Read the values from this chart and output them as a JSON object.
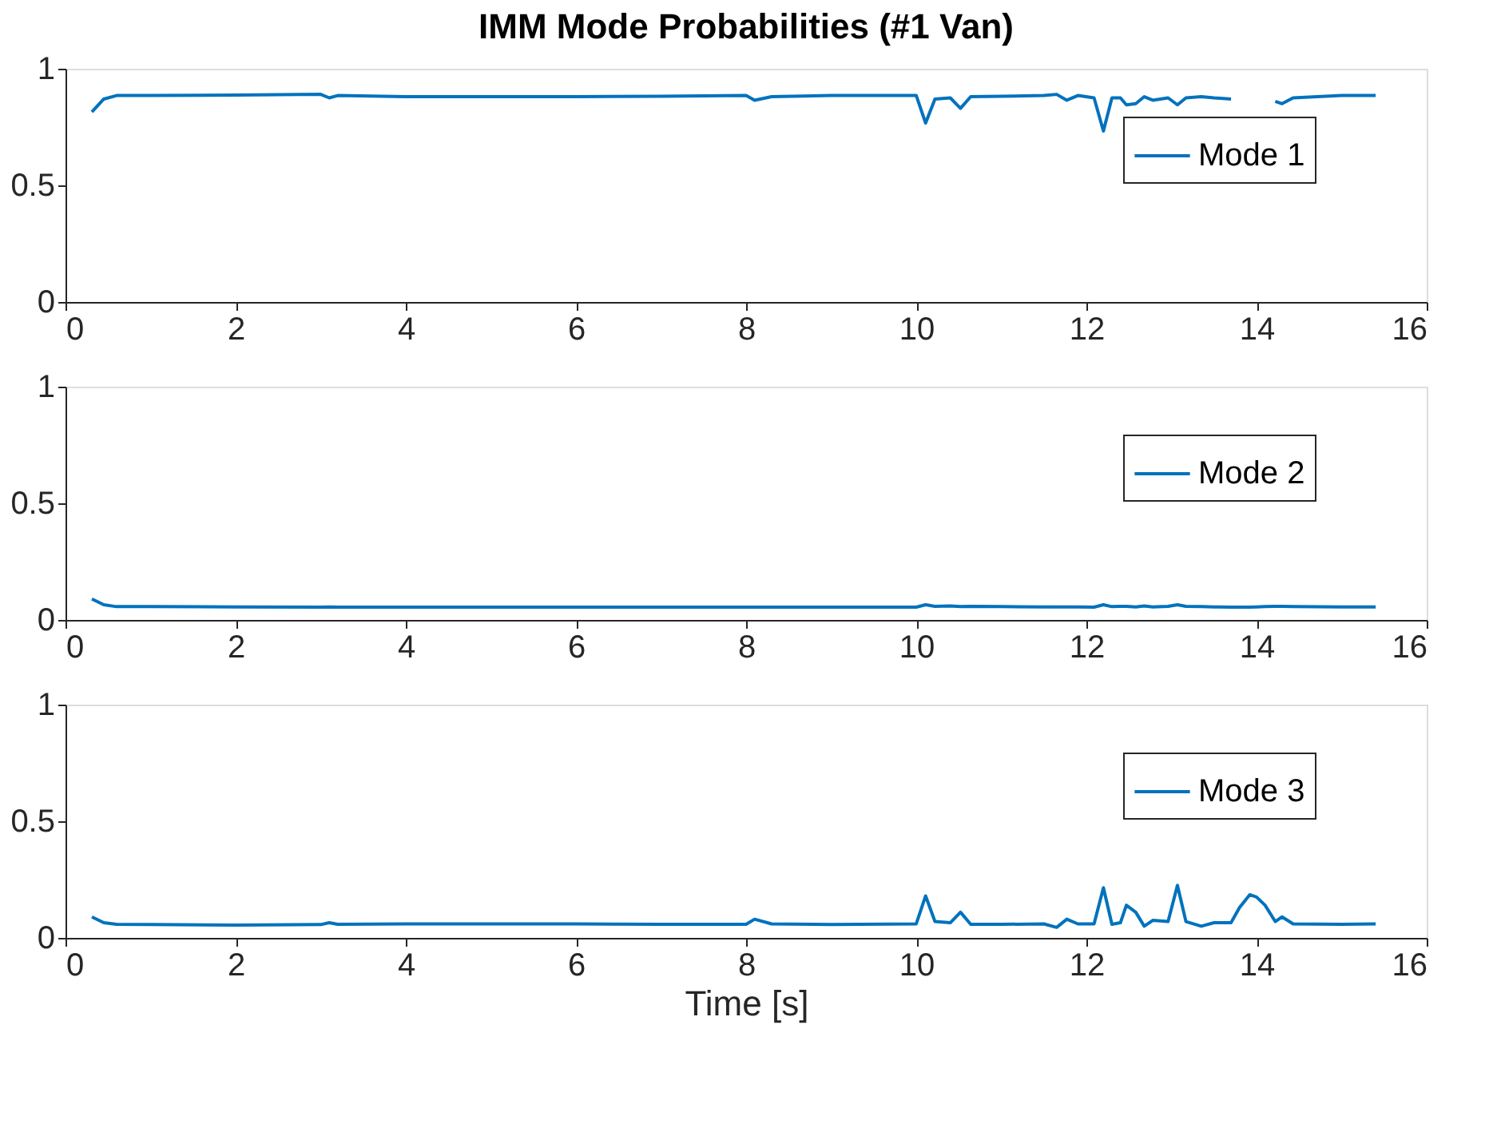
{
  "chart_data": [
    {
      "type": "line",
      "title": "IMM Mode Probabilities (#1 Van)",
      "x": [
        0.31,
        0.45,
        0.6,
        1,
        2,
        3,
        3.1,
        3.2,
        4,
        5,
        6,
        7,
        8,
        8.1,
        8.3,
        9,
        10,
        10.11,
        10.22,
        10.4,
        10.52,
        10.64,
        11,
        11.5,
        11.65,
        11.77,
        11.9,
        12.09,
        12.2,
        12.3,
        12.4,
        12.47,
        12.58,
        12.68,
        12.78,
        12.96,
        13.07,
        13.17,
        13.35,
        13.5,
        13.7,
        13.8,
        13.92,
        14.0,
        14.1,
        14.22,
        14.3,
        14.43,
        15,
        15.4
      ],
      "series": [
        {
          "name": "Mode 1",
          "color": "#0072bd",
          "values": [
            0.815,
            0.87,
            0.885,
            0.885,
            0.887,
            0.89,
            0.875,
            0.885,
            0.88,
            0.88,
            0.88,
            0.882,
            0.885,
            0.865,
            0.88,
            0.885,
            0.885,
            0.767,
            0.87,
            0.875,
            0.83,
            0.88,
            0.882,
            0.885,
            0.89,
            0.865,
            0.885,
            0.875,
            0.733,
            0.875,
            0.875,
            0.845,
            0.85,
            0.88,
            0.865,
            0.875,
            0.845,
            0.875,
            0.88,
            0.875,
            0.87,
            null,
            null,
            null,
            null,
            0.86,
            0.85,
            0.875,
            0.885,
            0.885
          ]
        }
      ],
      "xlim": [
        0,
        16
      ],
      "xticks": [
        0,
        2,
        4,
        6,
        8,
        10,
        12,
        14,
        16
      ],
      "ylim": [
        0,
        1
      ],
      "yticks": [
        0,
        0.5,
        1
      ],
      "legend": "top right",
      "grid": false,
      "marker": "none",
      "line_style": "solid"
    },
    {
      "type": "line",
      "x": [
        0.31,
        0.45,
        0.6,
        1,
        2,
        3,
        3.1,
        3.2,
        4,
        5,
        6,
        7,
        8,
        8.1,
        8.3,
        9,
        10,
        10.11,
        10.22,
        10.4,
        10.52,
        10.64,
        11,
        11.5,
        11.65,
        11.77,
        11.9,
        12.09,
        12.2,
        12.3,
        12.4,
        12.47,
        12.58,
        12.68,
        12.78,
        12.96,
        13.07,
        13.17,
        13.35,
        13.5,
        13.7,
        13.8,
        13.92,
        14.0,
        14.1,
        14.22,
        14.3,
        14.43,
        15,
        15.4
      ],
      "series": [
        {
          "name": "Mode 2",
          "color": "#0072bd",
          "values": [
            0.09,
            0.065,
            0.057,
            0.057,
            0.056,
            0.055,
            0.056,
            0.055,
            0.055,
            0.055,
            0.055,
            0.055,
            0.055,
            0.055,
            0.055,
            0.055,
            0.055,
            0.065,
            0.058,
            0.06,
            0.057,
            0.058,
            0.057,
            0.056,
            0.056,
            0.056,
            0.056,
            0.055,
            0.065,
            0.057,
            0.058,
            0.058,
            0.056,
            0.06,
            0.056,
            0.058,
            0.065,
            0.058,
            0.057,
            0.056,
            0.055,
            0.055,
            0.055,
            0.056,
            0.057,
            0.058,
            0.058,
            0.057,
            0.056,
            0.056
          ]
        }
      ],
      "xlim": [
        0,
        16
      ],
      "xticks": [
        0,
        2,
        4,
        6,
        8,
        10,
        12,
        14,
        16
      ],
      "ylim": [
        0,
        1
      ],
      "yticks": [
        0,
        0.5,
        1
      ],
      "legend": "top right",
      "grid": false,
      "marker": "none",
      "line_style": "solid"
    },
    {
      "type": "line",
      "xlabel": "Time [s]",
      "x": [
        0.31,
        0.45,
        0.6,
        1,
        2,
        3,
        3.1,
        3.2,
        4,
        5,
        6,
        7,
        8,
        8.1,
        8.3,
        9,
        10,
        10.11,
        10.22,
        10.4,
        10.52,
        10.64,
        11,
        11.5,
        11.65,
        11.77,
        11.9,
        12.09,
        12.2,
        12.3,
        12.4,
        12.47,
        12.58,
        12.68,
        12.78,
        12.96,
        13.07,
        13.17,
        13.35,
        13.5,
        13.7,
        13.8,
        13.92,
        14.0,
        14.1,
        14.22,
        14.3,
        14.43,
        15,
        15.4
      ],
      "series": [
        {
          "name": "Mode 3",
          "color": "#0072bd",
          "values": [
            0.09,
            0.065,
            0.058,
            0.057,
            0.055,
            0.057,
            0.065,
            0.058,
            0.06,
            0.06,
            0.06,
            0.058,
            0.058,
            0.08,
            0.06,
            0.057,
            0.06,
            0.18,
            0.07,
            0.065,
            0.11,
            0.058,
            0.058,
            0.06,
            0.045,
            0.08,
            0.06,
            0.06,
            0.215,
            0.058,
            0.065,
            0.14,
            0.11,
            0.05,
            0.075,
            0.07,
            0.225,
            0.07,
            0.05,
            0.065,
            0.065,
            0.13,
            0.185,
            0.175,
            0.14,
            0.07,
            0.09,
            0.06,
            0.058,
            0.06
          ]
        }
      ],
      "xlim": [
        0,
        16
      ],
      "xticks": [
        0,
        2,
        4,
        6,
        8,
        10,
        12,
        14,
        16
      ],
      "ylim": [
        0,
        1
      ],
      "yticks": [
        0,
        0.5,
        1
      ],
      "legend": "top right",
      "grid": false,
      "marker": "none",
      "line_style": "solid"
    }
  ]
}
